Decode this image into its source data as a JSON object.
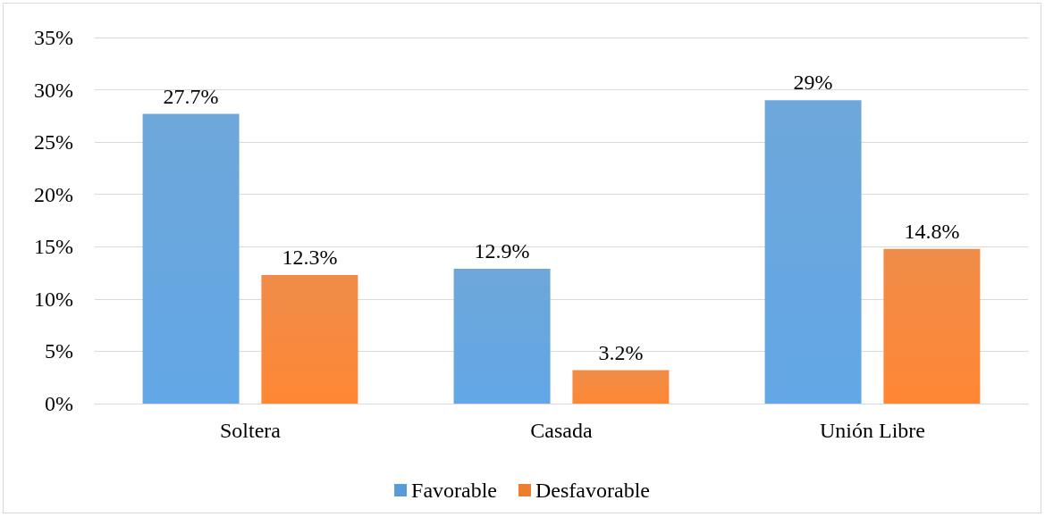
{
  "chart_data": {
    "type": "bar",
    "categories": [
      "Soltera",
      "Casada",
      "Unión Libre"
    ],
    "series": [
      {
        "name": "Favorable",
        "color": "#5b9bd5",
        "values": [
          27.7,
          12.9,
          29
        ],
        "value_labels": [
          "27.7%",
          "12.9%",
          "29%"
        ]
      },
      {
        "name": "Desfavorable",
        "color": "#ed7d31",
        "values": [
          12.3,
          3.2,
          14.8
        ],
        "value_labels": [
          "12.3%",
          "3.2%",
          "14.8%"
        ]
      }
    ],
    "ylim": [
      0,
      35
    ],
    "yticks": [
      {
        "value": 0,
        "label": "0%"
      },
      {
        "value": 5,
        "label": "5%"
      },
      {
        "value": 10,
        "label": "10%"
      },
      {
        "value": 15,
        "label": "15%"
      },
      {
        "value": 20,
        "label": "20%"
      },
      {
        "value": 25,
        "label": "25%"
      },
      {
        "value": 30,
        "label": "30%"
      },
      {
        "value": 35,
        "label": "35%"
      }
    ],
    "grid": "y",
    "legend": "bottom"
  }
}
